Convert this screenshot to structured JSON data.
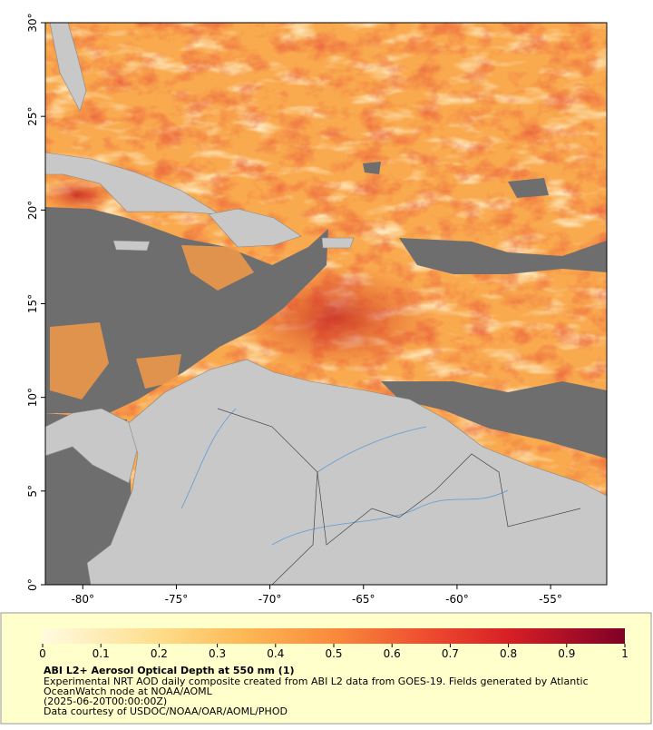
{
  "map": {
    "xlim": [
      -82,
      -52
    ],
    "ylim": [
      0,
      30
    ],
    "xticks": [
      {
        "value": -80,
        "label": "-80°"
      },
      {
        "value": -75,
        "label": "-75°"
      },
      {
        "value": -70,
        "label": "-70°"
      },
      {
        "value": -65,
        "label": "-65°"
      },
      {
        "value": -60,
        "label": "-60°"
      },
      {
        "value": -55,
        "label": "-55°"
      }
    ],
    "yticks": [
      {
        "value": 0,
        "label": "0°"
      },
      {
        "value": 5,
        "label": "5°"
      },
      {
        "value": 10,
        "label": "10°"
      },
      {
        "value": 15,
        "label": "15°"
      },
      {
        "value": 20,
        "label": "20°"
      },
      {
        "value": 25,
        "label": "25°"
      },
      {
        "value": 30,
        "label": "30°"
      }
    ]
  },
  "colorbar": {
    "lim": [
      0,
      1
    ],
    "ticks": [
      0,
      0.1,
      0.2,
      0.3,
      0.4,
      0.5,
      0.6,
      0.7,
      0.8,
      0.9,
      1
    ]
  },
  "caption": {
    "title": "ABI L2+ Aerosol Optical Depth at 550 nm (1)",
    "lines": [
      "Experimental NRT AOD daily composite created from ABI L2 data from GOES-19. Fields generated by Atlantic",
      "OceanWatch node at NOAA/AOML",
      "(2025-06-20T00:00:00Z)",
      "Data courtesy of USDOC/NOAA/OAR/AOML/PHOD"
    ]
  }
}
